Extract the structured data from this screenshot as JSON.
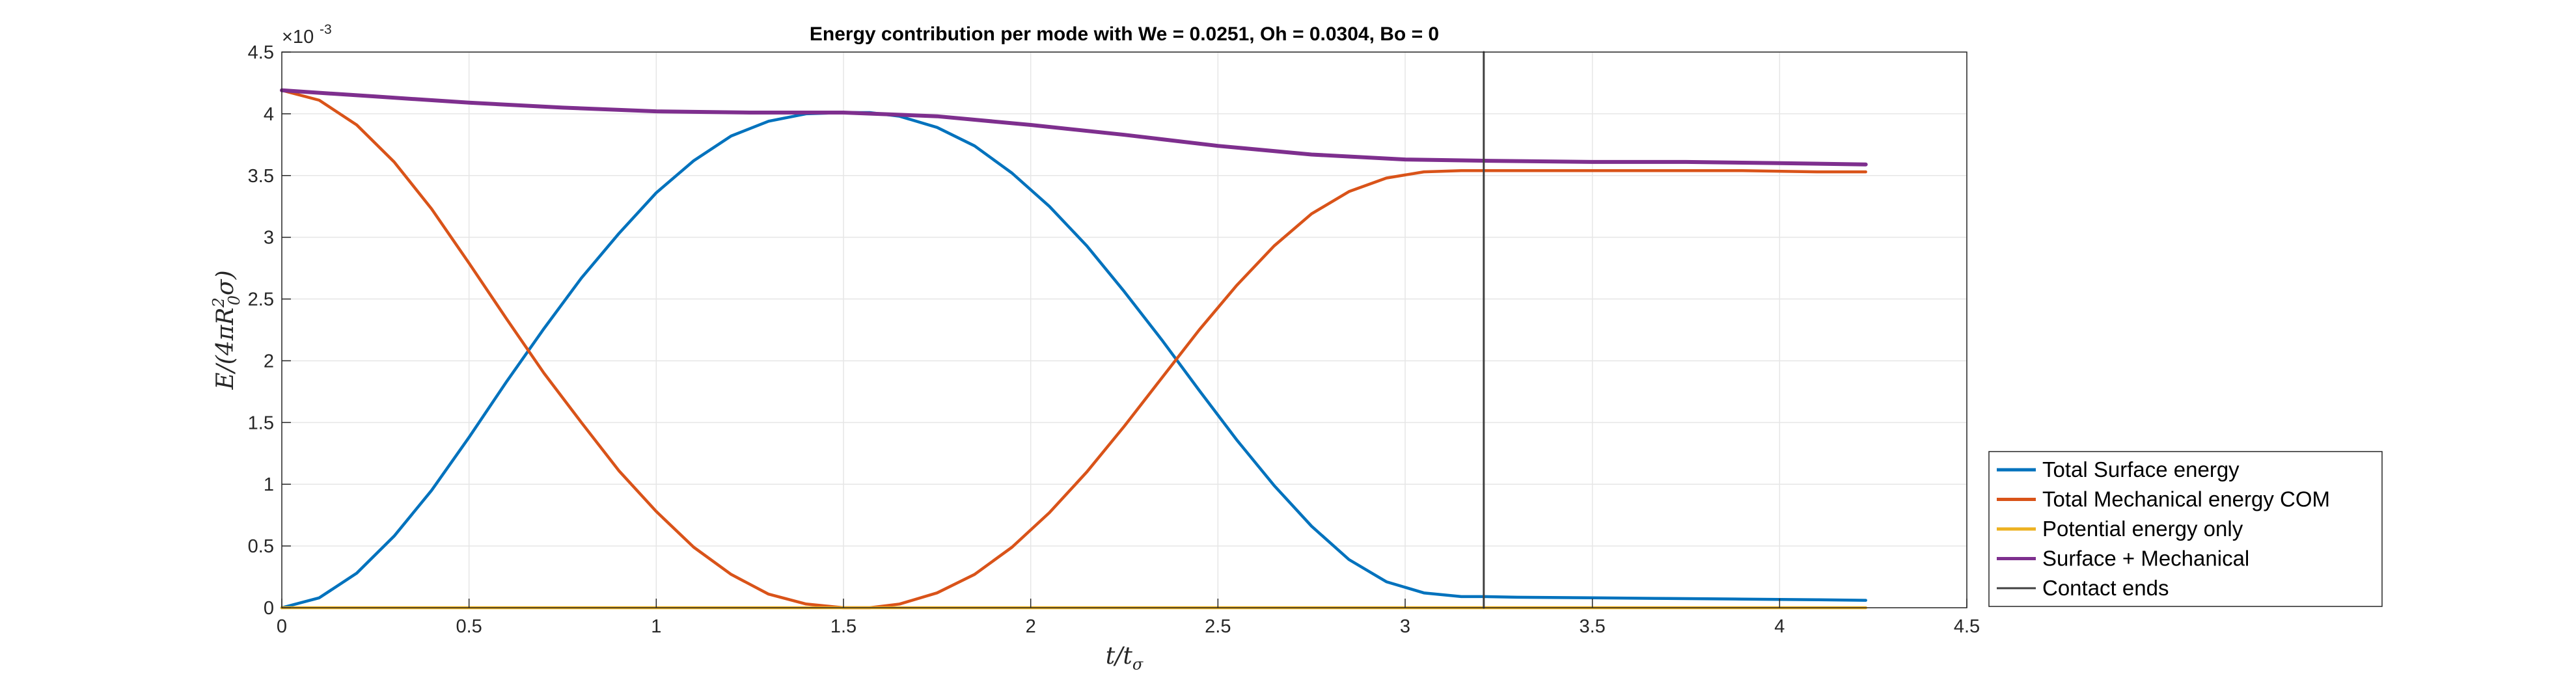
{
  "chart_data": {
    "type": "line",
    "title": "Energy contribution per mode with We = 0.0251, Oh = 0.0304, Bo = 0",
    "xlabel": "t/tσ",
    "ylabel": "E/(4πR₀²σ)",
    "xlim": [
      0,
      4.5
    ],
    "ylim": [
      0,
      4.5
    ],
    "y_exponent_label": "×10",
    "y_exponent_power": "-3",
    "x_ticks": [
      "0",
      "0.5",
      "1",
      "1.5",
      "2",
      "2.5",
      "3",
      "3.5",
      "4",
      "4.5"
    ],
    "y_ticks": [
      "0",
      "0.5",
      "1",
      "1.5",
      "2",
      "2.5",
      "3",
      "3.5",
      "4",
      "4.5"
    ],
    "grid": true,
    "legend_position": "bottom-right outside",
    "series": [
      {
        "name": "Total Surface energy",
        "color": "#0072BD",
        "x": [
          0,
          0.1,
          0.2,
          0.3,
          0.4,
          0.5,
          0.6,
          0.7,
          0.8,
          0.9,
          1.0,
          1.1,
          1.2,
          1.3,
          1.4,
          1.5,
          1.57,
          1.65,
          1.75,
          1.85,
          1.95,
          2.05,
          2.15,
          2.25,
          2.35,
          2.45,
          2.55,
          2.65,
          2.75,
          2.85,
          2.95,
          3.05,
          3.15,
          3.21,
          3.3,
          3.5,
          3.7,
          3.9,
          4.1,
          4.23
        ],
        "y": [
          0,
          0.08,
          0.28,
          0.58,
          0.95,
          1.38,
          1.83,
          2.26,
          2.67,
          3.03,
          3.36,
          3.62,
          3.82,
          3.94,
          4.0,
          4.01,
          4.01,
          3.98,
          3.89,
          3.74,
          3.52,
          3.25,
          2.93,
          2.56,
          2.17,
          1.76,
          1.36,
          0.99,
          0.66,
          0.39,
          0.21,
          0.12,
          0.09,
          0.09,
          0.085,
          0.08,
          0.075,
          0.07,
          0.065,
          0.06
        ]
      },
      {
        "name": "Total Mechanical energy COM",
        "color": "#D95319",
        "x": [
          0,
          0.1,
          0.2,
          0.3,
          0.4,
          0.5,
          0.6,
          0.7,
          0.8,
          0.9,
          1.0,
          1.1,
          1.2,
          1.3,
          1.4,
          1.5,
          1.57,
          1.65,
          1.75,
          1.85,
          1.95,
          2.05,
          2.15,
          2.25,
          2.35,
          2.45,
          2.55,
          2.65,
          2.75,
          2.85,
          2.95,
          3.05,
          3.15,
          3.21,
          3.3,
          3.5,
          3.7,
          3.9,
          4.1,
          4.23
        ],
        "y": [
          4.19,
          4.11,
          3.91,
          3.61,
          3.23,
          2.79,
          2.34,
          1.9,
          1.5,
          1.11,
          0.78,
          0.49,
          0.27,
          0.11,
          0.03,
          0.0,
          0.0,
          0.03,
          0.12,
          0.27,
          0.49,
          0.77,
          1.1,
          1.47,
          1.86,
          2.25,
          2.61,
          2.93,
          3.19,
          3.37,
          3.48,
          3.53,
          3.54,
          3.54,
          3.54,
          3.54,
          3.54,
          3.54,
          3.53,
          3.53
        ]
      },
      {
        "name": "Potential energy only",
        "color": "#EDB120",
        "x": [
          0,
          4.23
        ],
        "y": [
          0,
          0
        ]
      },
      {
        "name": "Surface + Mechanical",
        "color": "#7E2F8E",
        "x": [
          0,
          0.25,
          0.5,
          0.75,
          1.0,
          1.25,
          1.5,
          1.75,
          2.0,
          2.25,
          2.5,
          2.75,
          3.0,
          3.21,
          3.5,
          3.75,
          4.0,
          4.23
        ],
        "y": [
          4.19,
          4.14,
          4.09,
          4.05,
          4.02,
          4.01,
          4.01,
          3.98,
          3.91,
          3.83,
          3.74,
          3.67,
          3.63,
          3.62,
          3.61,
          3.61,
          3.6,
          3.59
        ]
      },
      {
        "name": "Contact ends",
        "color": "#404040",
        "x": [
          3.21,
          3.21
        ],
        "y": [
          0,
          4.5
        ]
      }
    ]
  }
}
